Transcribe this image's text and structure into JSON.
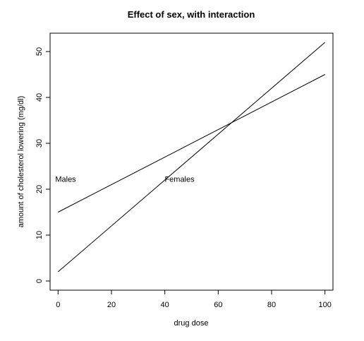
{
  "chart_data": {
    "type": "line",
    "title": "Effect of sex, with interaction",
    "xlabel": "drug dose",
    "ylabel": "amount of cholesterol lowering (mg/dl)",
    "xlim": [
      -3,
      103
    ],
    "ylim": [
      -2,
      54
    ],
    "xticks": [
      0,
      20,
      40,
      60,
      80,
      100
    ],
    "yticks": [
      0,
      10,
      20,
      30,
      40,
      50
    ],
    "grid": false,
    "legend": "none",
    "series": [
      {
        "name": "Males",
        "x": [
          0,
          100
        ],
        "y": [
          15,
          45
        ]
      },
      {
        "name": "Females",
        "x": [
          0,
          100
        ],
        "y": [
          2,
          52
        ]
      }
    ],
    "annotations": [
      {
        "text": "Males",
        "x": 0,
        "y": 21.6
      },
      {
        "text": "Females",
        "x": 41,
        "y": 21.6
      }
    ]
  }
}
